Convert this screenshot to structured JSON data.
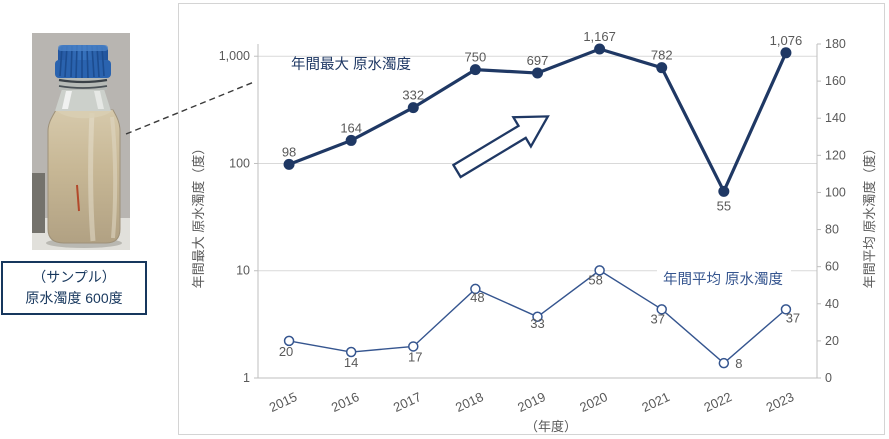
{
  "photo": {
    "icon": "raw-water-sample-bottle-photo",
    "caption_line1": "（サンプル）",
    "caption_line2": "原水濁度 600度"
  },
  "icons": {
    "trend_arrow": "up-right-block-arrow",
    "connector": "dashed-leader-line"
  },
  "chart_data": {
    "type": "line",
    "categories": [
      "2015",
      "2016",
      "2017",
      "2018",
      "2019",
      "2020",
      "2021",
      "2022",
      "2023"
    ],
    "series": [
      {
        "name": "年間最大 原水濁度",
        "axis": "left",
        "style": "thick-filled-markers",
        "color": "#1f3864",
        "values": [
          98,
          164,
          332,
          750,
          697,
          1167,
          782,
          55,
          1076
        ],
        "labels": [
          "98",
          "164",
          "332",
          "750",
          "697",
          "1,167",
          "782",
          "55",
          "1,076"
        ]
      },
      {
        "name": "年間平均 原水濁度",
        "axis": "right",
        "style": "thin-open-markers",
        "color": "#35558f",
        "values": [
          20,
          14,
          17,
          48,
          33,
          58,
          37,
          8,
          37
        ],
        "labels": [
          "20",
          "14",
          "17",
          "48",
          "33",
          "58",
          "37",
          "8",
          "37"
        ]
      }
    ],
    "left_axis": {
      "label": "年間最大 原水濁度（度）",
      "scale": "log",
      "min": 1,
      "max_display": 1300,
      "ticks": [
        "1,000",
        "100",
        "10",
        "1"
      ],
      "tick_values": [
        1000,
        100,
        10,
        1
      ]
    },
    "right_axis": {
      "label": "年間平均 原水濁度（度）",
      "scale": "linear",
      "min": 0,
      "max": 180,
      "tick_step": 20
    },
    "xlabel": "（年度）",
    "grid": "horizontal-log-decades",
    "legend_position": "inline-labels",
    "colors": {
      "grid": "#d9d9d9",
      "axis": "#bfbfbf",
      "tick_text": "#595959",
      "data_label_text": "#595959"
    }
  }
}
